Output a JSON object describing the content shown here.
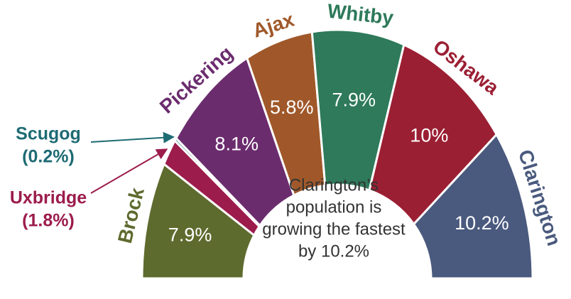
{
  "chart_data": {
    "type": "semi-donut",
    "categories": [
      "Brock",
      "Uxbridge",
      "Scugog",
      "Pickering",
      "Ajax",
      "Whitby",
      "Oshawa",
      "Clarington"
    ],
    "values": [
      7.9,
      1.8,
      0.2,
      8.1,
      5.8,
      7.9,
      10,
      10.2
    ],
    "value_labels": [
      "7.9%",
      "(1.8%)",
      "(0.2%)",
      "8.1%",
      "5.8%",
      "7.9%",
      "10%",
      "10.2%"
    ],
    "colors": [
      "#5e6b2e",
      "#9c1c4c",
      "#1e6b73",
      "#6b2c6e",
      "#a0582a",
      "#2e7a5a",
      "#9b1f33",
      "#4a5a7e"
    ],
    "center_text": [
      "Clarington’s",
      "population is",
      "growing the fastest",
      "by 10.2%"
    ]
  }
}
